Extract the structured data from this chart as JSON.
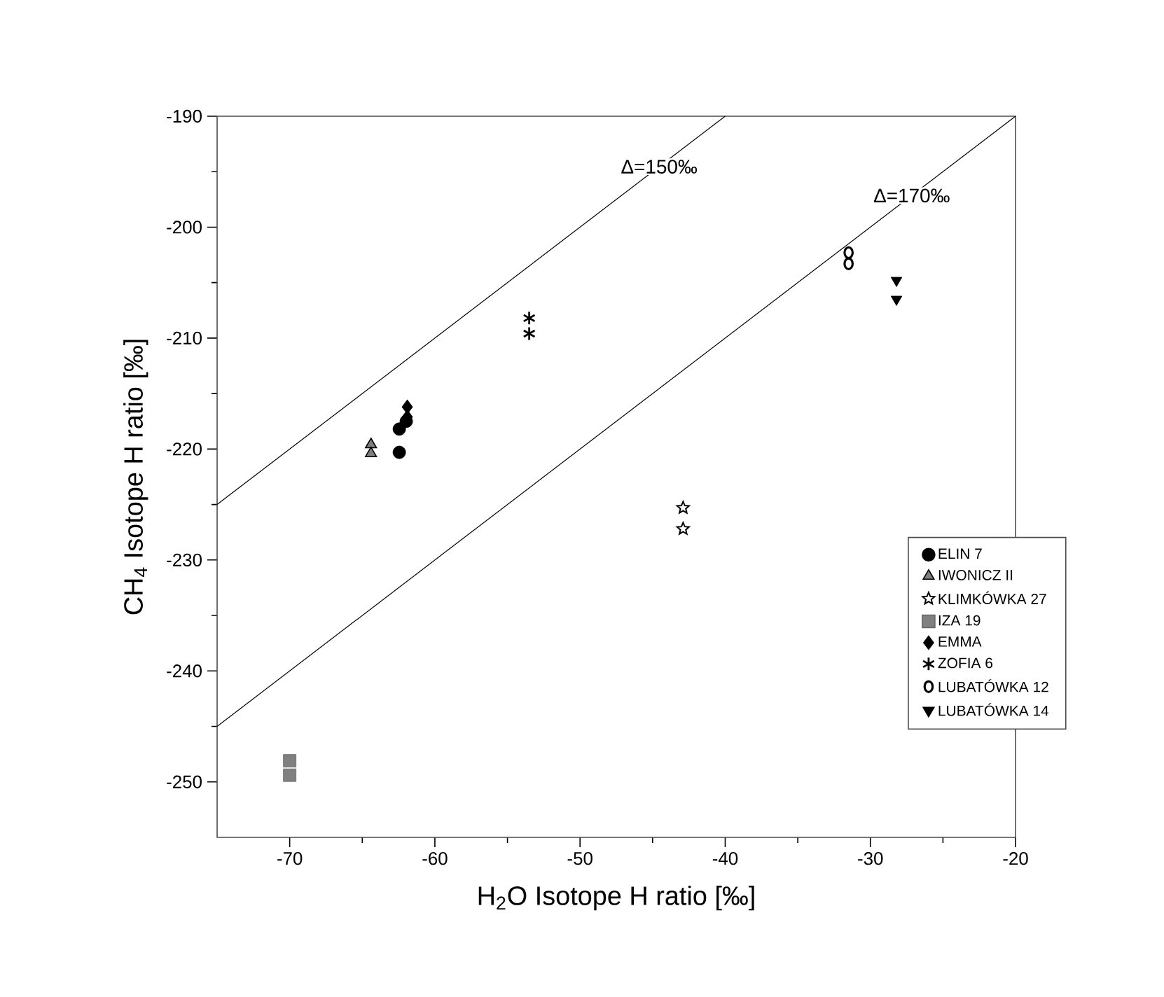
{
  "chart_data": {
    "type": "scatter",
    "xlabel": "H$_{2}$O Isotope H ratio [‰]",
    "ylabel": "CH$_{4}$ Isotope H ratio [‰]",
    "xlim": [
      -75,
      -20
    ],
    "ylim": [
      -255,
      -190
    ],
    "xticks": [
      -70,
      -60,
      -50,
      -40,
      -30,
      -20
    ],
    "yticks": [
      -250,
      -240,
      -230,
      -220,
      -210,
      -200,
      -190
    ],
    "grid": false,
    "legend": "right",
    "annotations": [
      "Δ=150‰",
      "Δ=170‰"
    ],
    "series": [
      {
        "name": "ELIN 7",
        "color": "#000000",
        "marker": "circle",
        "x": [
          -62.45,
          -62.45,
          -61.97
        ],
        "values": [
          -220.3,
          -218.2,
          -217.5
        ]
      },
      {
        "name": "IWONICZ II",
        "color": "#808080",
        "marker": "triangle",
        "x": [
          -64.4,
          -64.4
        ],
        "values": [
          -219.6,
          -220.4
        ]
      },
      {
        "name": "KLIMKÓWKA 27",
        "color": "#000000",
        "marker": "star",
        "x": [
          -42.9,
          -42.9
        ],
        "values": [
          -225.3,
          -227.2
        ]
      },
      {
        "name": "IZA 19",
        "color": "#808080",
        "marker": "square",
        "x": [
          -70,
          -70
        ],
        "values": [
          -248.1,
          -249.4
        ]
      },
      {
        "name": "EMMA",
        "color": "#000000",
        "marker": "diamond",
        "x": [
          -61.9,
          -61.9
        ],
        "values": [
          -216.2,
          -217.1
        ]
      },
      {
        "name": "ZOFIA 6",
        "color": "#000000",
        "marker": "cross",
        "x": [
          -53.5,
          -53.5
        ],
        "values": [
          -208.2,
          -209.6
        ]
      },
      {
        "name": "LUBATÓWKA 12",
        "color": "#000000",
        "marker": "circle",
        "x": [
          -31.5,
          -31.5
        ],
        "values": [
          -202.3,
          -203.3
        ]
      },
      {
        "name": "LUBATÓWKA 14",
        "color": "#000000",
        "marker": "triangle",
        "x": [
          -28.2,
          -28.2
        ],
        "values": [
          -204.8,
          -206.5
        ]
      },
      {
        "type": "line",
        "color": "#000000",
        "marker": "none",
        "x": [
          -75,
          -40
        ],
        "values": [
          -225,
          -190
        ]
      },
      {
        "type": "line",
        "color": "#000000",
        "marker": "none",
        "x": [
          -75,
          -20
        ],
        "values": [
          -245,
          -190
        ]
      }
    ]
  }
}
